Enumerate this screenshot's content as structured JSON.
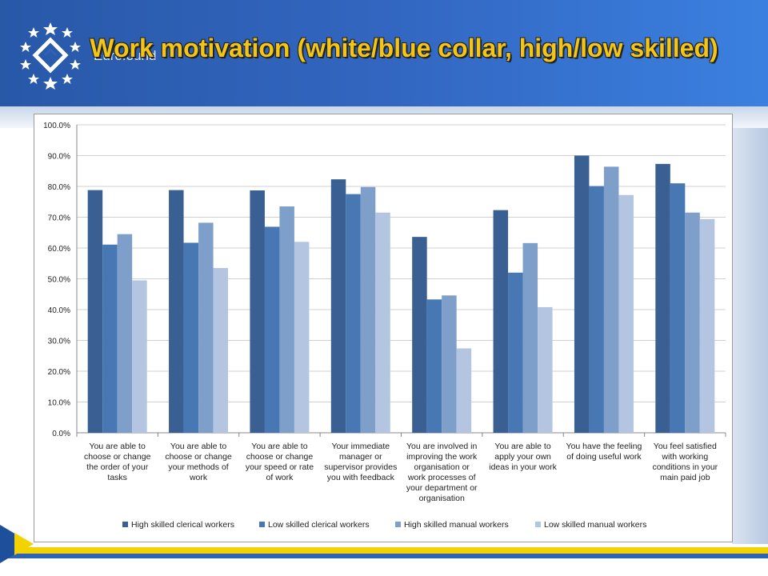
{
  "header": {
    "title": "Work motivation (white/blue collar, high/low skilled)",
    "logo_text": "Eurofound"
  },
  "colors": {
    "header_blue": "#2f62b8",
    "title_yellow": "#f2c516",
    "series": [
      "#3a5f93",
      "#4878b4",
      "#7f9fcb",
      "#b4c5e2"
    ]
  },
  "chart_data": {
    "type": "bar",
    "title": "",
    "xlabel": "",
    "ylabel": "",
    "ylim": [
      0,
      100
    ],
    "yticks": [
      "0.0%",
      "10.0%",
      "20.0%",
      "30.0%",
      "40.0%",
      "50.0%",
      "60.0%",
      "70.0%",
      "80.0%",
      "90.0%",
      "100.0%"
    ],
    "grid": true,
    "legend_position": "bottom",
    "categories": [
      [
        "You are able to",
        "choose or change",
        "the order of your",
        "tasks"
      ],
      [
        "You are able to",
        "choose or change",
        "your methods of",
        "work"
      ],
      [
        "You are able to",
        "choose or change",
        "your speed or rate",
        "of work"
      ],
      [
        "Your immediate",
        "manager or",
        "supervisor provides",
        "you with feedback"
      ],
      [
        "You are involved in",
        "improving the work",
        "organisation or",
        "work processes of",
        "your department or",
        "organisation"
      ],
      [
        "You are able to",
        "apply your own",
        "ideas in your work"
      ],
      [
        "You have the feeling",
        "of doing useful work"
      ],
      [
        "You feel satisfied",
        "with working",
        "conditions in your",
        "main paid job"
      ]
    ],
    "series": [
      {
        "name": "High skilled clerical workers",
        "color": "#3a5f93",
        "values": [
          78.8,
          78.8,
          78.7,
          82.3,
          63.6,
          72.3,
          90.0,
          87.3
        ]
      },
      {
        "name": "Low skilled clerical workers",
        "color": "#4878b4",
        "values": [
          61.1,
          61.7,
          66.9,
          77.5,
          43.3,
          52.0,
          80.1,
          81.0
        ]
      },
      {
        "name": "High skilled manual workers",
        "color": "#7f9fcb",
        "values": [
          64.5,
          68.2,
          73.5,
          79.8,
          44.6,
          61.6,
          86.4,
          71.5
        ]
      },
      {
        "name": "Low skilled manual workers",
        "color": "#b4c5e2",
        "values": [
          49.5,
          53.5,
          62.0,
          71.5,
          27.4,
          40.8,
          77.2,
          69.4
        ]
      }
    ]
  }
}
